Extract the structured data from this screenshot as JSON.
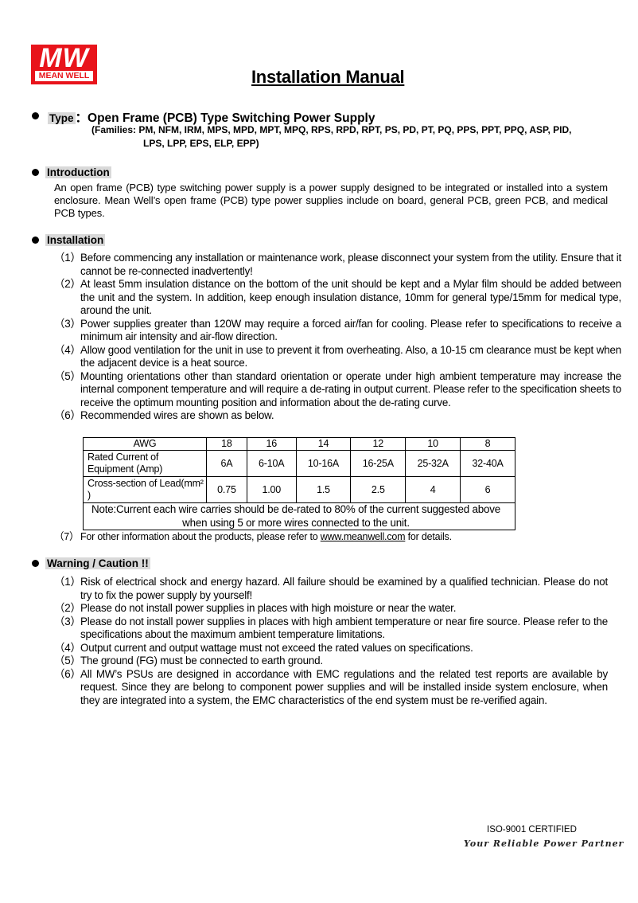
{
  "logo": {
    "mark": "MW",
    "brand": "MEAN WELL",
    "color": "#e8141b"
  },
  "title": "Installation Manual",
  "type": {
    "label": "Type",
    "sep": "：",
    "value": "Open Frame (PCB) Type Switching Power Supply",
    "families_1": "(Families: PM, NFM, IRM, MPS, MPD, MPT, MPQ, RPS, RPD, RPT, PS, PD, PT, PQ, PPS, PPT, PPQ, ASP, PID,",
    "families_2": "LPS, LPP, EPS, ELP, EPP)"
  },
  "introduction": {
    "heading": "Introduction",
    "text": "An open frame (PCB) type switching power supply is a power supply designed to be integrated or installed into a system enclosure. Mean Well’s open frame (PCB) type power supplies include on board, general PCB, green PCB, and medical PCB types."
  },
  "installation": {
    "heading": "Installation",
    "items": [
      {
        "num": "（1）",
        "text": "Before commencing any installation or maintenance work, please disconnect your system from the utility. Ensure that it cannot be re-connected inadvertently!"
      },
      {
        "num": "（2）",
        "text": "At least 5mm insulation distance on the bottom of the unit should be kept and a Mylar film should be added between the unit and the system. In addition, keep enough insulation distance, 10mm for general type/15mm for medical type, around the unit."
      },
      {
        "num": "（3）",
        "text": "Power supplies greater than 120W may require a forced air/fan for cooling. Please refer to specifications to receive a minimum air intensity and air-flow direction."
      },
      {
        "num": "（4）",
        "text": "Allow good ventilation for the unit in use to prevent it from overheating. Also, a 10-15 cm clearance must be kept when the adjacent device is a heat source."
      },
      {
        "num": "（5）",
        "text": "Mounting orientations other than standard orientation or operate under high ambient temperature may increase the internal component temperature and will require a de-rating in output current. Please refer to the specification sheets to receive the optimum mounting position and information about the de-rating curve."
      },
      {
        "num": "（6）",
        "text": "Recommended wires are shown as below."
      }
    ],
    "table": {
      "header": [
        "AWG",
        "18",
        "16",
        "14",
        "12",
        "10",
        "8"
      ],
      "rows": [
        [
          "Rated Current of Equipment (Amp)",
          "6A",
          "6-10A",
          "10-16A",
          "16-25A",
          "25-32A",
          "32-40A"
        ],
        [
          "Cross-section of Lead(mm² )",
          "0.75",
          "1.00",
          "1.5",
          "2.5",
          "4",
          "6"
        ]
      ],
      "note": "Note:Current each wire carries should be de-rated to 80% of the current suggested above when using 5 or more wires connected to the unit."
    },
    "item7": {
      "num": "（7）",
      "before": "For other information about the products, please refer to ",
      "link": "www.meanwell.com",
      "after": " for details."
    }
  },
  "warning": {
    "heading": "Warning / Caution !!",
    "items": [
      {
        "num": "（1）",
        "text": "Risk of electrical shock and energy hazard. All failure should be examined by a qualified technician. Please do not try to fix the power supply by yourself!"
      },
      {
        "num": "（2）",
        "text": "Please do not install power supplies in places with high moisture or near the water."
      },
      {
        "num": "（3）",
        "text": "Please do not install power supplies in places with high ambient temperature or near fire source. Please refer to the specifications about the maximum ambient temperature limitations."
      },
      {
        "num": "（4）",
        "text": "Output current and output wattage must not exceed the rated values on specifications."
      },
      {
        "num": "（5）",
        "text": "The ground (FG) must be connected to earth ground."
      },
      {
        "num": "（6）",
        "text": "All MW’s PSUs are designed in accordance with EMC regulations and the related test reports are available by request. Since they are belong to component power supplies and will be installed inside system enclosure, when they are integrated into a system, the EMC characteristics of the end system must be re-verified again."
      }
    ]
  },
  "footer": {
    "iso": "ISO-9001 CERTIFIED",
    "slogan": "Your Reliable Power Partner"
  }
}
